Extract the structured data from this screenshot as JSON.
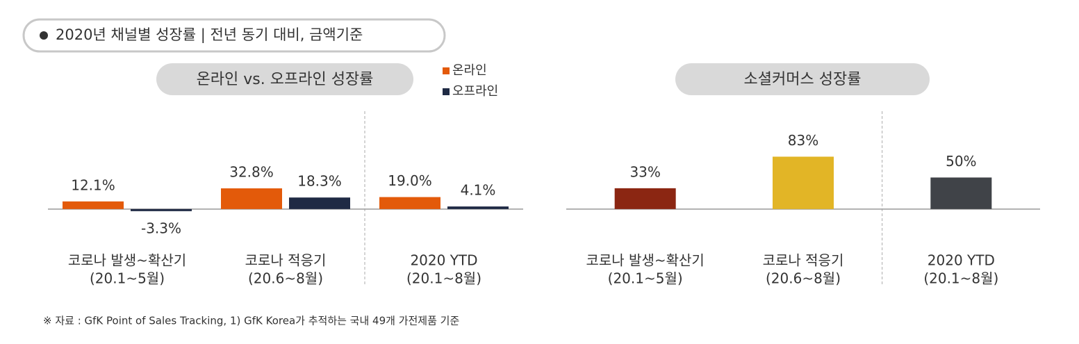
{
  "title": "2020년 채널별 성장률 | 전년 동기 대비, 금액기준",
  "note": "※ 자료 : GfK Point of Sales Tracking, 1) GfK Korea가 추적하는 국내 49개 가전제품 기준",
  "chart_data": [
    {
      "type": "grouped_bar",
      "title": "온라인 vs. 오프라인 성장률",
      "categories": [
        "코로나 발생~확산기",
        "코로나 적응기",
        "2020 YTD"
      ],
      "periods": [
        "(20.1~5월)",
        "(20.6~8월)",
        "(20.1~8월)"
      ],
      "series": [
        {
          "name": "온라인",
          "color": "#e35a0a",
          "values": [
            12.1,
            32.8,
            19.0
          ],
          "value_labels": [
            "12.1%",
            "32.8%",
            "19.0%"
          ]
        },
        {
          "name": "오프라인",
          "color": "#1f2a44",
          "values": [
            -3.3,
            18.3,
            4.1
          ],
          "value_labels": [
            "-3.3%",
            "18.3%",
            "4.1%"
          ]
        }
      ],
      "ylim": [
        -20,
        100
      ],
      "legend": "top-right"
    },
    {
      "type": "bar",
      "title": "소셜커머스 성장률",
      "categories": [
        "코로나 발생~확산기",
        "코로나 적응기",
        "2020 YTD"
      ],
      "periods": [
        "(20.1~5월)",
        "(20.6~8월)",
        "(20.1~8월)"
      ],
      "values": [
        33,
        83,
        50
      ],
      "value_labels": [
        "33%",
        "83%",
        "50%"
      ],
      "colors": [
        "#8b2612",
        "#e2b526",
        "#404348"
      ],
      "ylim": [
        -20,
        100
      ]
    }
  ]
}
